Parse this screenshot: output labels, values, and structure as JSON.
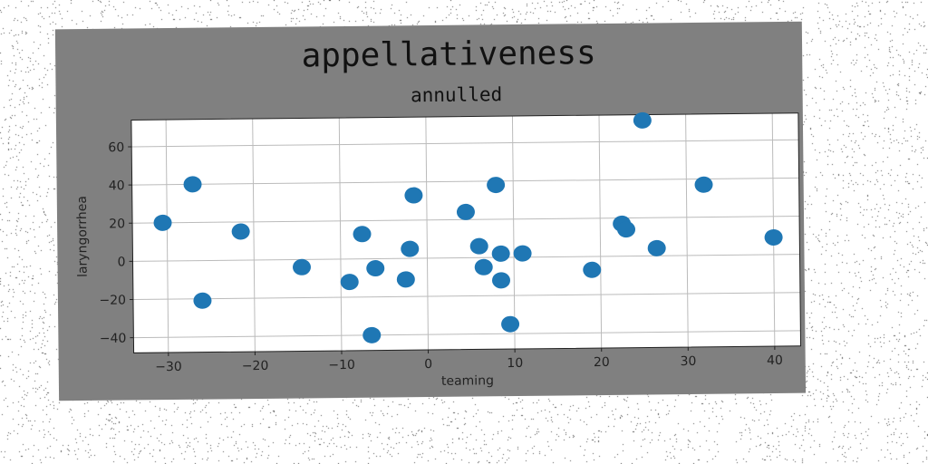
{
  "chart_data": {
    "type": "scatter",
    "title": "appellativeness",
    "subtitle": "annulled",
    "xlabel": "teaming",
    "ylabel": "laryngorrhea",
    "xlim": [
      -34,
      43
    ],
    "ylim": [
      -48,
      74
    ],
    "xticks": [
      -30,
      -20,
      -10,
      0,
      10,
      20,
      30,
      40
    ],
    "yticks": [
      -40,
      -20,
      0,
      20,
      40,
      60
    ],
    "grid": true,
    "marker_color": "#1f77b4",
    "points": [
      {
        "x": -30.5,
        "y": 20
      },
      {
        "x": -27,
        "y": 40
      },
      {
        "x": -26,
        "y": -21
      },
      {
        "x": -21.5,
        "y": 15
      },
      {
        "x": -14.5,
        "y": -4
      },
      {
        "x": -9,
        "y": -12
      },
      {
        "x": -7.5,
        "y": 13
      },
      {
        "x": -6.5,
        "y": -40
      },
      {
        "x": -6,
        "y": -5
      },
      {
        "x": -2.5,
        "y": -11
      },
      {
        "x": -2,
        "y": 5
      },
      {
        "x": -1.5,
        "y": 33
      },
      {
        "x": 4.5,
        "y": 24
      },
      {
        "x": 6,
        "y": 6
      },
      {
        "x": 6.5,
        "y": -5
      },
      {
        "x": 8,
        "y": 38
      },
      {
        "x": 8.5,
        "y": 2
      },
      {
        "x": 8.5,
        "y": -12
      },
      {
        "x": 9.5,
        "y": -35
      },
      {
        "x": 11,
        "y": 2
      },
      {
        "x": 19,
        "y": -7
      },
      {
        "x": 22.5,
        "y": 17
      },
      {
        "x": 23,
        "y": 14
      },
      {
        "x": 25,
        "y": 71
      },
      {
        "x": 26.5,
        "y": 4
      },
      {
        "x": 32,
        "y": 37
      },
      {
        "x": 40,
        "y": 9
      }
    ]
  },
  "colors": {
    "figure_background": "#808080",
    "plot_background": "#ffffff",
    "grid": "#bbbbbb"
  }
}
